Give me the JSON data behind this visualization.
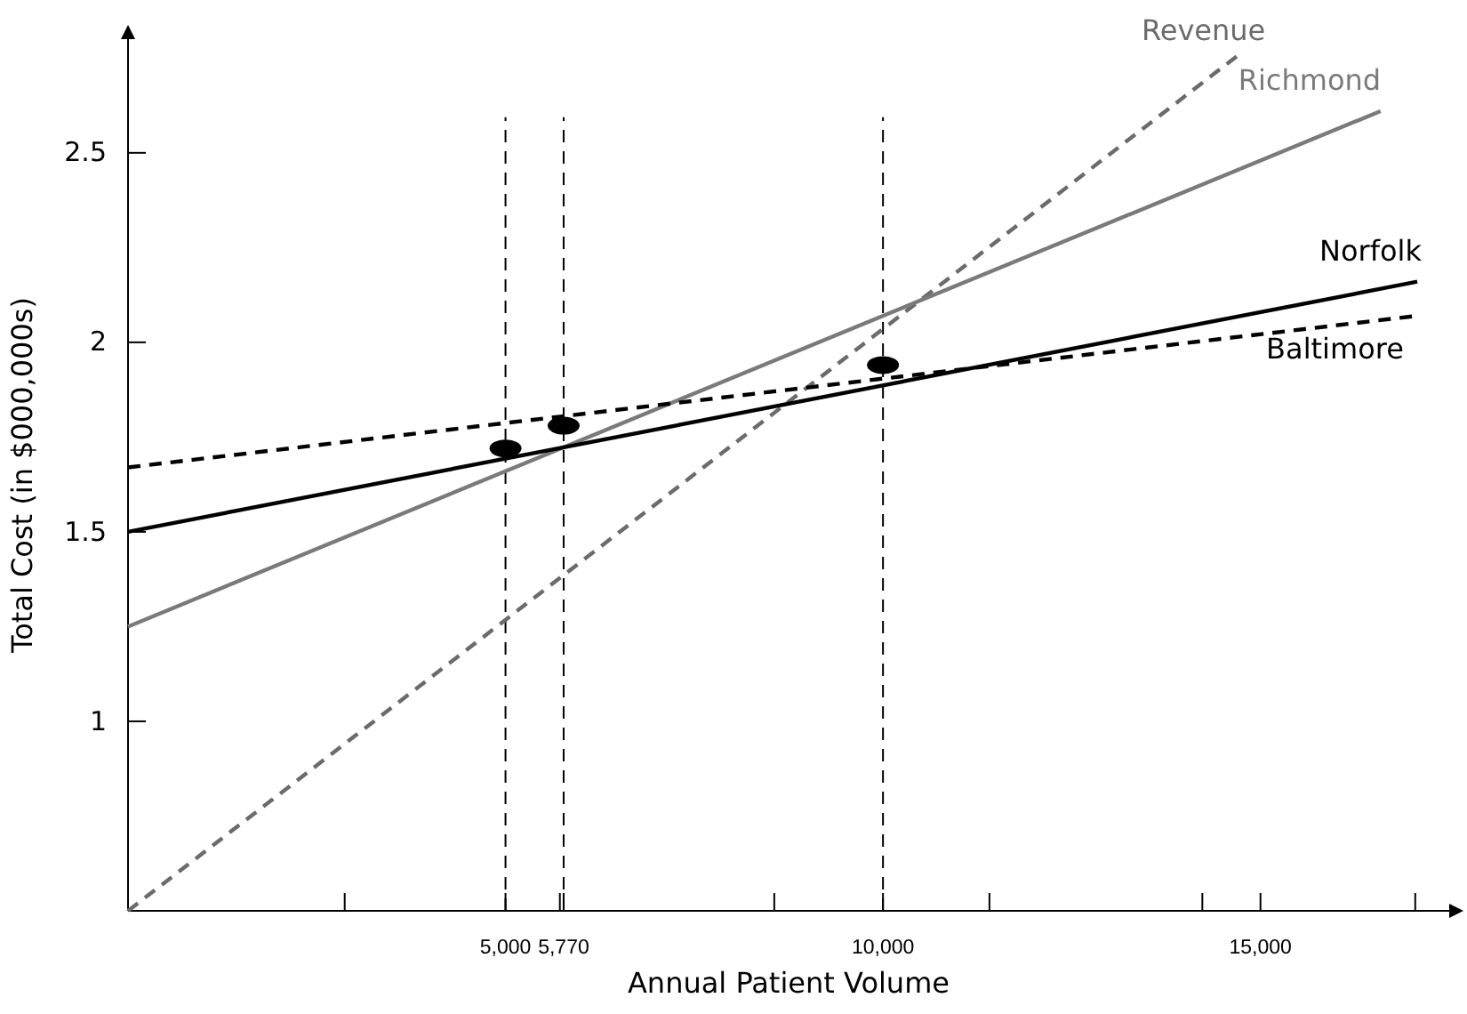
{
  "chart_data": {
    "type": "line",
    "xlabel": "Annual Patient Volume",
    "ylabel": "Total Cost (in $000,000s)",
    "xlim": [
      0,
      17500
    ],
    "ylim": [
      0.5,
      2.8
    ],
    "xticks": [
      {
        "value": 2870,
        "label": null
      },
      {
        "value": 5000,
        "label": "5,000"
      },
      {
        "value": 5720,
        "label": null
      },
      {
        "value": 5770,
        "label": "5,770"
      },
      {
        "value": 8560,
        "label": null
      },
      {
        "value": 10000,
        "label": "10,000"
      },
      {
        "value": 11410,
        "label": null
      },
      {
        "value": 14230,
        "label": null
      },
      {
        "value": 15000,
        "label": "15,000"
      },
      {
        "value": 17050,
        "label": null
      }
    ],
    "yticks": [
      1,
      1.5,
      2,
      2.5
    ],
    "series": [
      {
        "name": "Revenue",
        "color": "#6b6b6b",
        "line_style": "dashed",
        "x": [
          0,
          14720
        ],
        "values": [
          0.5,
          2.76
        ]
      },
      {
        "name": "Richmond",
        "color": "#7a7a7a",
        "line_style": "solid",
        "x": [
          0,
          16590
        ],
        "values": [
          1.25,
          2.61
        ]
      },
      {
        "name": "Norfolk",
        "color": "#000000",
        "line_style": "solid",
        "x": [
          0,
          17077
        ],
        "values": [
          1.5,
          2.16
        ]
      },
      {
        "name": "Baltimore",
        "color": "#000000",
        "line_style": "dashed",
        "x": [
          0,
          17077
        ],
        "values": [
          1.67,
          2.07
        ]
      },
      {
        "type": "scatter",
        "color": "#000000",
        "marker": "circle",
        "x": [
          5000,
          5770,
          10000
        ],
        "values": [
          1.72,
          1.78,
          1.94
        ]
      }
    ],
    "ref_lines": [
      {
        "axis": "x",
        "value": 5000,
        "color": "#000000",
        "line_style": "dashed"
      },
      {
        "axis": "x",
        "value": 5770,
        "color": "#000000",
        "line_style": "dashed"
      },
      {
        "axis": "x",
        "value": 10000,
        "color": "#000000",
        "line_style": "dashed"
      }
    ],
    "grid": false
  }
}
